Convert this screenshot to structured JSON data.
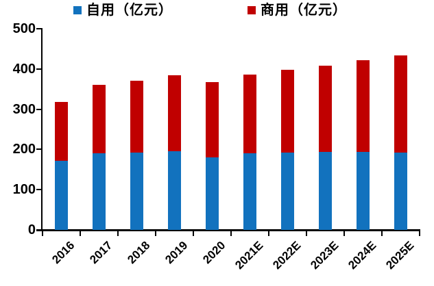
{
  "chart": {
    "legend": [
      {
        "label": "自用（亿元）",
        "color": "#1272BE"
      },
      {
        "label": "商用（亿元）",
        "color": "#C00000"
      }
    ]
  },
  "chart_data": {
    "type": "bar",
    "stacked": true,
    "title": "",
    "xlabel": "",
    "ylabel": "",
    "categories": [
      "2016",
      "2017",
      "2018",
      "2019",
      "2020",
      "2021E",
      "2022E",
      "2023E",
      "2024E",
      "2025E"
    ],
    "series": [
      {
        "name": "自用（亿元）",
        "color": "#1272BE",
        "values": [
          172,
          190,
          193,
          195,
          180,
          191,
          192,
          194,
          194,
          193
        ]
      },
      {
        "name": "商用（亿元）",
        "color": "#C00000",
        "values": [
          146,
          170,
          177,
          189,
          188,
          195,
          206,
          214,
          227,
          240
        ]
      }
    ],
    "totals": [
      318,
      360,
      370,
      384,
      368,
      386,
      398,
      408,
      421,
      433
    ],
    "ylim": [
      0,
      500
    ],
    "yticks": [
      0,
      100,
      200,
      300,
      400,
      500
    ],
    "grid": false,
    "legend_position": "top",
    "axis_color": "#000000",
    "x_label_rotation_deg": -45
  }
}
